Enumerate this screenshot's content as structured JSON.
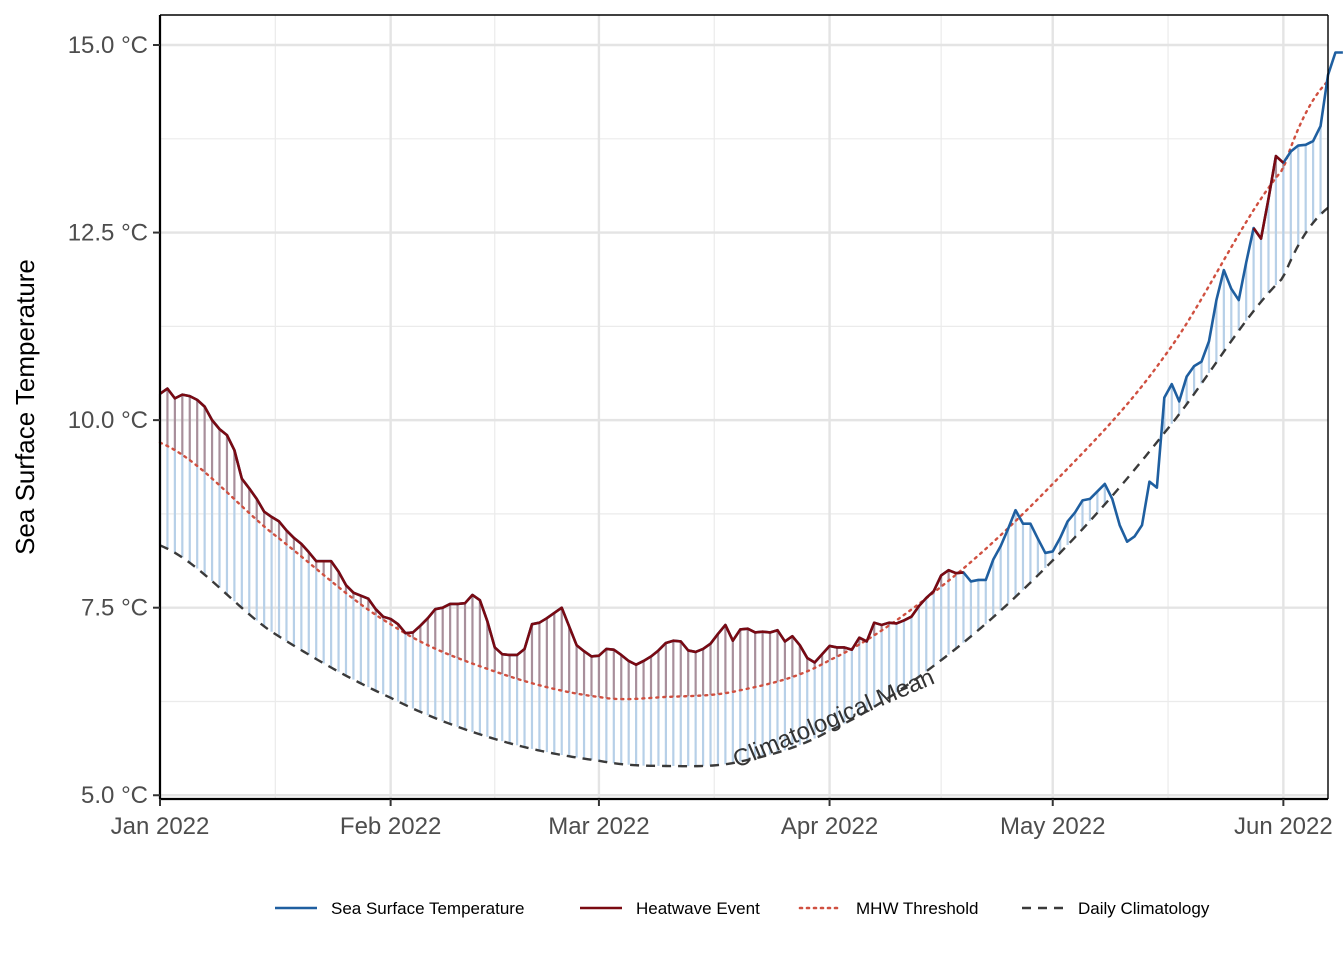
{
  "chart_data": {
    "type": "line",
    "title": "",
    "xlabel": "",
    "ylabel": "Sea Surface Temperature",
    "y_unit_suffix": " °C",
    "xlim": [
      "2022-01-01",
      "2022-06-07"
    ],
    "ylim": [
      4.95,
      15.4
    ],
    "y_ticks": [
      {
        "value": 5.0,
        "label": "5.0 °C"
      },
      {
        "value": 7.5,
        "label": "7.5 °C"
      },
      {
        "value": 10.0,
        "label": "10.0 °C"
      },
      {
        "value": 12.5,
        "label": "12.5 °C"
      },
      {
        "value": 15.0,
        "label": "15.0 °C"
      }
    ],
    "x_ticks": [
      {
        "value": "2022-01-01",
        "label": "Jan 2022"
      },
      {
        "value": "2022-02-01",
        "label": "Feb 2022"
      },
      {
        "value": "2022-03-01",
        "label": "Mar 2022"
      },
      {
        "value": "2022-04-01",
        "label": "Apr 2022"
      },
      {
        "value": "2022-05-01",
        "label": "May 2022"
      },
      {
        "value": "2022-06-01",
        "label": "Jun 2022"
      }
    ],
    "grid": true,
    "legend_position": "bottom",
    "legend": [
      {
        "name": "Sea Surface Temperature",
        "color": "#1f5fa0",
        "style": "solid"
      },
      {
        "name": "Heatwave Event",
        "color": "#7a0a12",
        "style": "solid"
      },
      {
        "name": "MHW Threshold",
        "color": "#d05040",
        "style": "dotted"
      },
      {
        "name": "Daily Climatology",
        "color": "#3a3a3a",
        "style": "dashed"
      }
    ],
    "annotations": [
      {
        "text": "Climatological Mean",
        "date": "2022-03-20",
        "value": 5.55
      }
    ],
    "colors": {
      "sst": "#1f5fa0",
      "heatwave": "#7a0a12",
      "threshold": "#d05040",
      "climatology": "#3a3a3a",
      "fill_normal": "#b7d0e8",
      "fill_heatwave": "#a88f9b"
    },
    "climatology_knots": [
      {
        "date": "2022-01-01",
        "value": 8.33
      },
      {
        "date": "2022-01-16",
        "value": 7.18
      },
      {
        "date": "2022-02-01",
        "value": 6.3
      },
      {
        "date": "2022-02-15",
        "value": 5.75
      },
      {
        "date": "2022-03-01",
        "value": 5.46
      },
      {
        "date": "2022-03-10",
        "value": 5.39
      },
      {
        "date": "2022-03-20",
        "value": 5.45
      },
      {
        "date": "2022-04-01",
        "value": 5.86
      },
      {
        "date": "2022-04-16",
        "value": 6.8
      },
      {
        "date": "2022-05-01",
        "value": 8.13
      },
      {
        "date": "2022-05-16",
        "value": 9.83
      },
      {
        "date": "2022-06-01",
        "value": 11.9
      },
      {
        "date": "2022-06-07",
        "value": 12.83
      }
    ],
    "threshold_knots": [
      {
        "date": "2022-01-01",
        "value": 9.7
      },
      {
        "date": "2022-01-16",
        "value": 8.5
      },
      {
        "date": "2022-02-01",
        "value": 7.28
      },
      {
        "date": "2022-02-15",
        "value": 6.65
      },
      {
        "date": "2022-03-01",
        "value": 6.31
      },
      {
        "date": "2022-03-10",
        "value": 6.31
      },
      {
        "date": "2022-03-20",
        "value": 6.4
      },
      {
        "date": "2022-04-01",
        "value": 6.8
      },
      {
        "date": "2022-04-16",
        "value": 7.78
      },
      {
        "date": "2022-05-01",
        "value": 9.15
      },
      {
        "date": "2022-05-16",
        "value": 10.85
      },
      {
        "date": "2022-06-01",
        "value": 13.35
      },
      {
        "date": "2022-06-07",
        "value": 14.52
      }
    ],
    "series": [
      {
        "name": "Sea Surface Temperature",
        "start_date": "2022-01-01",
        "step_days": 1,
        "values": [
          10.35,
          10.42,
          10.29,
          10.34,
          10.32,
          10.27,
          10.18,
          10.0,
          9.88,
          9.8,
          9.6,
          9.22,
          9.09,
          8.95,
          8.78,
          8.71,
          8.65,
          8.53,
          8.43,
          8.35,
          8.24,
          8.12,
          8.12,
          8.12,
          7.98,
          7.8,
          7.7,
          7.66,
          7.62,
          7.48,
          7.38,
          7.35,
          7.28,
          7.16,
          7.17,
          7.26,
          7.36,
          7.48,
          7.5,
          7.55,
          7.55,
          7.56,
          7.67,
          7.6,
          7.32,
          6.97,
          6.88,
          6.87,
          6.87,
          6.95,
          7.28,
          7.3,
          7.36,
          7.43,
          7.5,
          7.25,
          7.0,
          6.92,
          6.85,
          6.86,
          6.95,
          6.94,
          6.87,
          6.79,
          6.74,
          6.79,
          6.85,
          6.93,
          7.03,
          7.06,
          7.05,
          6.93,
          6.91,
          6.95,
          7.02,
          7.15,
          7.27,
          7.06,
          7.21,
          7.22,
          7.17,
          7.18,
          7.17,
          7.2,
          7.05,
          7.12,
          7.0,
          6.83,
          6.77,
          6.88,
          6.99,
          6.97,
          6.97,
          6.94,
          7.1,
          7.05,
          7.3,
          7.27,
          7.3,
          7.29,
          7.33,
          7.38,
          7.52,
          7.63,
          7.72,
          7.93,
          8.0,
          7.96,
          7.97,
          7.85,
          7.87,
          7.87,
          8.14,
          8.32,
          8.55,
          8.8,
          8.62,
          8.62,
          8.42,
          8.23,
          8.25,
          8.43,
          8.65,
          8.77,
          8.93,
          8.95,
          9.05,
          9.15,
          8.95,
          8.6,
          8.38,
          8.45,
          8.6,
          9.18,
          9.1,
          10.3,
          10.48,
          10.25,
          10.58,
          10.72,
          10.78,
          11.05,
          11.6,
          12.0,
          11.75,
          11.6,
          12.1,
          12.56,
          12.42,
          12.95,
          13.52,
          13.43,
          13.58,
          13.66,
          13.67,
          13.72,
          13.92,
          14.6,
          14.9,
          14.9
        ]
      },
      {
        "name": "Heatwave Event",
        "segments": [
          {
            "start_date": "2022-01-01",
            "end_date": "2022-04-19"
          },
          {
            "start_date": "2022-05-28",
            "end_date": "2022-06-01"
          }
        ]
      },
      {
        "name": "MHW Threshold",
        "ref": "threshold_knots"
      },
      {
        "name": "Daily Climatology",
        "ref": "climatology_knots"
      }
    ]
  }
}
